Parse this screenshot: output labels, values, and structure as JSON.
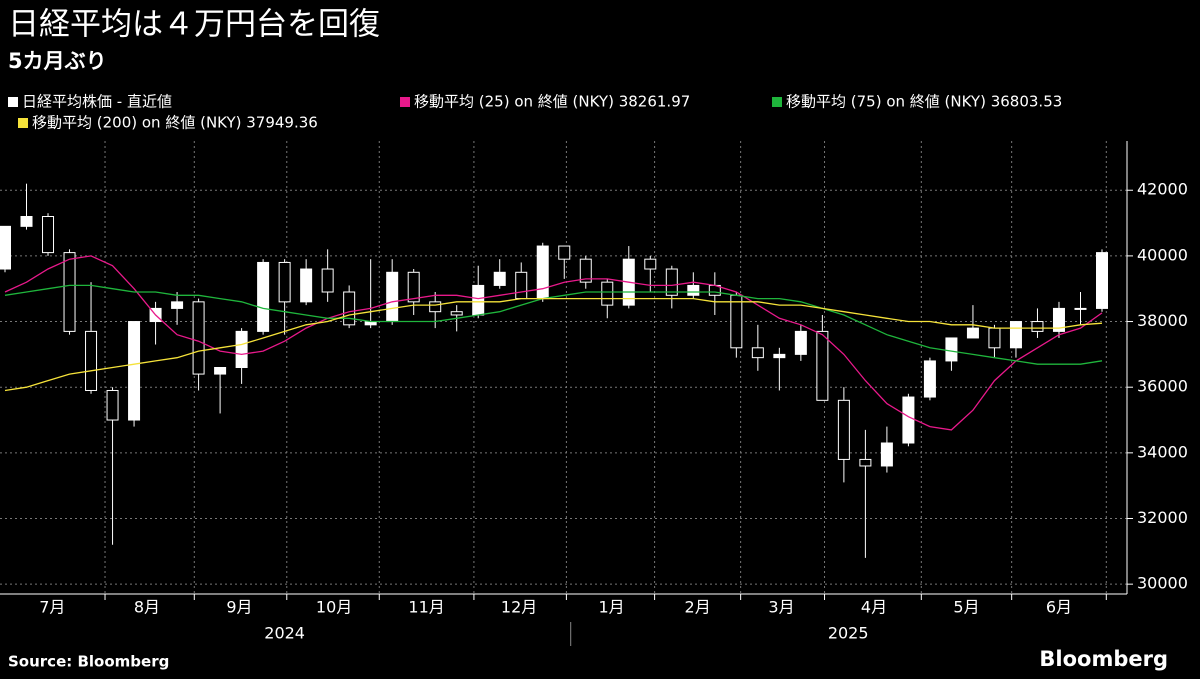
{
  "chart_data": {
    "type": "candlestick",
    "title": "日経平均は４万円台を回復",
    "subtitle": "5カ月ぶり",
    "source": "Source: Bloomberg",
    "brand": "Bloomberg",
    "grid": true,
    "xlim": [
      0,
      51
    ],
    "xticks": [
      4.65,
      8.8,
      13.1,
      17.4,
      21.8,
      26.1,
      30.2,
      34.2,
      38.1,
      42.6,
      46.8,
      51.2
    ],
    "month_labels": [
      {
        "value": 2.2,
        "label": "7月"
      },
      {
        "value": 6.6,
        "label": "8月"
      },
      {
        "value": 10.9,
        "label": "9月"
      },
      {
        "value": 15.3,
        "label": "10月"
      },
      {
        "value": 19.6,
        "label": "11月"
      },
      {
        "value": 23.9,
        "label": "12月"
      },
      {
        "value": 28.2,
        "label": "1月"
      },
      {
        "value": 32.2,
        "label": "2月"
      },
      {
        "value": 36.1,
        "label": "3月"
      },
      {
        "value": 40.4,
        "label": "4月"
      },
      {
        "value": 44.7,
        "label": "5月"
      },
      {
        "value": 49.0,
        "label": "6月"
      }
    ],
    "year_labels": [
      {
        "value": 13,
        "label": "2024"
      },
      {
        "value": 39.2,
        "label": "2025"
      }
    ],
    "year_divider": 26.3,
    "ylim": [
      29700,
      43500
    ],
    "yticks": [
      30000,
      32000,
      34000,
      36000,
      38000,
      40000,
      42000
    ],
    "candles": {
      "name": "日経平均株価 - 直近値",
      "color": "#ffffff",
      "open": [
        39600,
        40900,
        41200,
        40100,
        37700,
        35900,
        35000,
        38000,
        38400,
        38600,
        36400,
        36600,
        37700,
        39800,
        38600,
        39600,
        38900,
        37900,
        38000,
        39500,
        38600,
        38300,
        38200,
        39100,
        39500,
        38700,
        40300,
        39900,
        39200,
        38500,
        39900,
        39600,
        38800,
        39100,
        38800,
        37200,
        36900,
        37000,
        37700,
        35600,
        33800,
        33600,
        34300,
        35700,
        36800,
        37500,
        37800,
        37200,
        38000,
        37700,
        38400,
        38400
      ],
      "high": [
        40900,
        42200,
        41300,
        40200,
        39200,
        36000,
        38000,
        38600,
        38900,
        38700,
        36600,
        37800,
        39900,
        39900,
        39900,
        40200,
        39100,
        39900,
        39900,
        39600,
        38900,
        38500,
        39700,
        39900,
        39800,
        40400,
        40300,
        40000,
        39300,
        40300,
        40000,
        39700,
        39500,
        39500,
        38900,
        37900,
        37200,
        37900,
        38200,
        36000,
        34700,
        34800,
        35800,
        36900,
        37500,
        38500,
        37900,
        38000,
        38400,
        38600,
        38900,
        40200
      ],
      "low": [
        39500,
        40800,
        40000,
        37600,
        35800,
        31200,
        34800,
        37300,
        37900,
        35900,
        35200,
        36100,
        37600,
        37600,
        38500,
        38600,
        37800,
        37800,
        37900,
        38200,
        37800,
        37700,
        38100,
        39000,
        38700,
        38600,
        39300,
        39000,
        38100,
        38400,
        38900,
        38400,
        38700,
        38200,
        36900,
        36500,
        35900,
        36800,
        35600,
        33100,
        30800,
        33400,
        34200,
        35600,
        36500,
        37500,
        36900,
        36900,
        37500,
        37500,
        37900,
        38300
      ],
      "close": [
        40900,
        41200,
        40100,
        37700,
        35900,
        35000,
        38000,
        38400,
        38600,
        36400,
        36600,
        37700,
        39800,
        38600,
        39600,
        38900,
        37900,
        38000,
        39500,
        38600,
        38300,
        38200,
        39100,
        39500,
        38700,
        40300,
        39900,
        39200,
        38500,
        39900,
        39600,
        38800,
        39100,
        38800,
        37200,
        36900,
        37000,
        37700,
        35600,
        33800,
        33600,
        34300,
        35700,
        36800,
        37500,
        37800,
        37200,
        38000,
        37700,
        38400,
        38400,
        40100
      ]
    },
    "series": [
      {
        "name": "移動平均 (25)  on 終値 (NKY) 38261.97",
        "color": "#e8198b",
        "values": [
          38900,
          39200,
          39600,
          39900,
          40000,
          39700,
          39000,
          38200,
          37600,
          37400,
          37100,
          37000,
          37100,
          37400,
          37800,
          38100,
          38300,
          38400,
          38600,
          38700,
          38800,
          38800,
          38700,
          38800,
          38900,
          39000,
          39200,
          39300,
          39300,
          39200,
          39100,
          39100,
          39200,
          39100,
          38900,
          38500,
          38100,
          37900,
          37600,
          37000,
          36200,
          35500,
          35100,
          34800,
          34700,
          35300,
          36200,
          36800,
          37200,
          37600,
          37800,
          38261.97
        ]
      },
      {
        "name": "移動平均 (75)  on 終値 (NKY) 36803.53",
        "color": "#1fb53c",
        "values": [
          38800,
          38900,
          39000,
          39100,
          39100,
          39000,
          38900,
          38900,
          38800,
          38800,
          38700,
          38600,
          38400,
          38300,
          38200,
          38100,
          38100,
          38000,
          38000,
          38000,
          38000,
          38100,
          38200,
          38300,
          38500,
          38700,
          38800,
          38900,
          38900,
          38900,
          38900,
          38900,
          38900,
          38900,
          38800,
          38700,
          38700,
          38600,
          38400,
          38200,
          37900,
          37600,
          37400,
          37200,
          37100,
          37000,
          36900,
          36800,
          36700,
          36700,
          36700,
          36803.53
        ]
      },
      {
        "name": "移動平均 (200)  on 終値 (NKY) 37949.36",
        "color": "#f5e23a",
        "values": [
          35900,
          36000,
          36200,
          36400,
          36500,
          36600,
          36700,
          36800,
          36900,
          37100,
          37200,
          37300,
          37500,
          37700,
          37900,
          38000,
          38200,
          38300,
          38400,
          38500,
          38500,
          38600,
          38600,
          38600,
          38700,
          38700,
          38700,
          38700,
          38700,
          38700,
          38700,
          38700,
          38700,
          38600,
          38600,
          38600,
          38500,
          38500,
          38400,
          38300,
          38200,
          38100,
          38000,
          38000,
          37900,
          37900,
          37800,
          37800,
          37800,
          37800,
          37900,
          37949.36
        ]
      }
    ]
  }
}
